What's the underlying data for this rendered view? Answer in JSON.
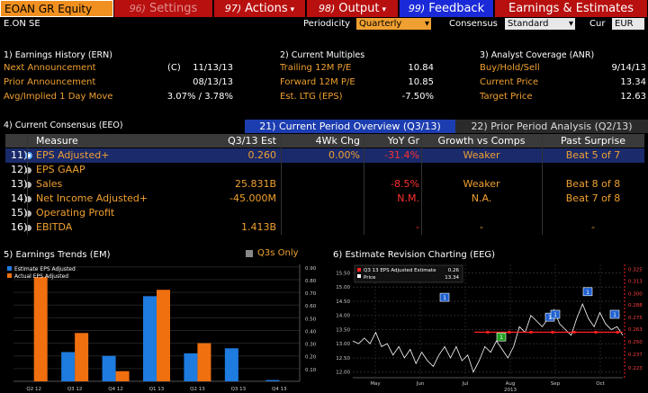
{
  "toolbar": {
    "ticker": "EOAN GR Equity",
    "buttons": [
      {
        "num": "96)",
        "label": "Settings",
        "has_arrow": false,
        "style": "dim"
      },
      {
        "num": "97)",
        "label": "Actions",
        "has_arrow": true,
        "style": "normal"
      },
      {
        "num": "98)",
        "label": "Output",
        "has_arrow": true,
        "style": "normal"
      },
      {
        "num": "99)",
        "label": "Feedback",
        "has_arrow": false,
        "style": "blue"
      },
      {
        "num": "",
        "label": "Earnings & Estimates",
        "has_arrow": false,
        "style": "normal"
      }
    ]
  },
  "header": {
    "company": "E.ON SE",
    "periodicity_label": "Periodicity",
    "periodicity_value": "Quarterly",
    "consensus_label": "Consensus",
    "consensus_value": "Standard",
    "cur_label": "Cur",
    "cur_value": "EUR"
  },
  "earnings_history": {
    "title": "1) Earnings History (ERN)",
    "rows": [
      {
        "label": "Next Announcement",
        "flag": "(C)",
        "value": "11/13/13"
      },
      {
        "label": "Prior Announcement",
        "flag": "",
        "value": "08/13/13"
      },
      {
        "label": "Avg/Implied 1 Day Move",
        "flag": "",
        "value": "3.07% / 3.78%"
      }
    ]
  },
  "current_multiples": {
    "title": "2) Current Multiples",
    "rows": [
      {
        "label": "Trailing 12M P/E",
        "value": "10.84"
      },
      {
        "label": "Forward 12M P/E",
        "value": "10.85"
      },
      {
        "label": "Est. LTG (EPS)",
        "value": "-7.50%"
      }
    ]
  },
  "analyst_coverage": {
    "title": "3) Analyst Coverage (ANR)",
    "rows": [
      {
        "label": "Buy/Hold/Sell",
        "value": "9/14/13"
      },
      {
        "label": "Current Price",
        "value": "13.34"
      },
      {
        "label": "Target Price",
        "value": "12.63"
      }
    ]
  },
  "consensus": {
    "title": "4) Current Consensus (EEO)",
    "tab_active": "21) Current Period Overview (Q3/13)",
    "tab_inactive": "22) Prior Period Analysis (Q2/13)",
    "columns": [
      "Measure",
      "Q3/13 Est",
      "4Wk Chg",
      "YoY Gr",
      "Growth vs Comps",
      "Past Surprise"
    ],
    "rows": [
      {
        "num": "11)",
        "measure": "EPS Adjusted+",
        "est": "0.260",
        "chg": "0.00%",
        "yoy": "-31.4%",
        "growth": "Weaker",
        "surprise": "Beat 5 of 7",
        "selected": true
      },
      {
        "num": "12)",
        "measure": "EPS GAAP",
        "est": "",
        "chg": "",
        "yoy": "",
        "growth": "",
        "surprise": "",
        "selected": false
      },
      {
        "num": "13)",
        "measure": "Sales",
        "est": "25.831B",
        "chg": "",
        "yoy": "-8.5%",
        "growth": "Weaker",
        "surprise": "Beat 8 of 8",
        "selected": false
      },
      {
        "num": "14)",
        "measure": "Net Income Adjusted+",
        "est": "-45.000M",
        "chg": "",
        "yoy": "N.M.",
        "growth": "N.A.",
        "surprise": "Beat 7 of 8",
        "selected": false
      },
      {
        "num": "15)",
        "measure": "Operating Profit",
        "est": "",
        "chg": "",
        "yoy": "",
        "growth": "",
        "surprise": "",
        "selected": false
      },
      {
        "num": "16)",
        "measure": "EBITDA",
        "est": "1.413B",
        "chg": "",
        "yoy": "-",
        "growth": "-",
        "surprise": "-",
        "selected": false
      }
    ]
  },
  "earnings_trends": {
    "title": "5) Earnings Trends (EM)",
    "q3s_only_label": "Q3s Only",
    "colors": {
      "estimate": "#1e7be0",
      "actual": "#f07010"
    }
  },
  "revision_chart": {
    "title": "6) Estimate Revision Charting (EEG)",
    "colors": {
      "estimate": "#ff2020",
      "price": "#ffffff"
    }
  },
  "chart_data": [
    {
      "type": "bar",
      "title": "Earnings Trends",
      "categories": [
        "Q2 12",
        "Q3 12",
        "Q4 12",
        "Q1 13",
        "Q2 13",
        "Q3 13",
        "Q4 13"
      ],
      "series": [
        {
          "name": "Estimate EPS Adjusted",
          "values": [
            null,
            0.23,
            0.2,
            0.67,
            0.22,
            0.26,
            0.01
          ]
        },
        {
          "name": "Actual EPS Adjusted",
          "values": [
            0.82,
            0.38,
            0.08,
            0.72,
            0.3,
            null,
            null
          ]
        }
      ],
      "y_ticks": [
        "0.10",
        "0.20",
        "0.30",
        "0.40",
        "0.50",
        "0.60",
        "0.70",
        "0.80",
        "0.90"
      ],
      "ylim": [
        0,
        0.92
      ],
      "legend": "top-left"
    },
    {
      "type": "line",
      "title": "Estimate Revision Charting",
      "series": [
        {
          "name": "Q3 13 EPS Adjusted Estimate",
          "legend_value": "0.26"
        },
        {
          "name": "Price",
          "legend_value": "13.34"
        }
      ],
      "x_ticks": [
        "May",
        "Jun",
        "Jul",
        "Aug",
        "Sep",
        "Oct"
      ],
      "x_year": "2013",
      "y_left_ticks": [
        "12.00",
        "12.50",
        "13.00",
        "13.50",
        "14.00",
        "14.50",
        "15.00",
        "15.50"
      ],
      "y_right_ticks": [
        "0.223",
        "0.237",
        "0.250",
        "0.263",
        "0.275",
        "0.288",
        "0.300",
        "0.313",
        "0.325"
      ],
      "price_ylim": [
        11.8,
        15.8
      ],
      "price_values": [
        13.1,
        13.0,
        13.2,
        13.0,
        13.4,
        12.9,
        13.0,
        12.6,
        12.9,
        12.5,
        12.8,
        12.3,
        12.7,
        12.4,
        12.2,
        12.6,
        12.9,
        12.5,
        12.9,
        12.4,
        12.6,
        12.0,
        12.4,
        12.9,
        12.7,
        13.1,
        12.8,
        12.5,
        12.9,
        13.6,
        13.4,
        14.0,
        13.8,
        13.6,
        13.9,
        14.2,
        13.7,
        13.5,
        13.3,
        13.9,
        14.4,
        13.9,
        13.6,
        14.1,
        13.7,
        13.5,
        13.6,
        13.3
      ],
      "estimate_value": 0.26,
      "estimate_ylim": [
        0.213,
        0.33
      ],
      "markers": [
        "1",
        "1",
        "1",
        "1",
        "1",
        "1"
      ]
    }
  ]
}
